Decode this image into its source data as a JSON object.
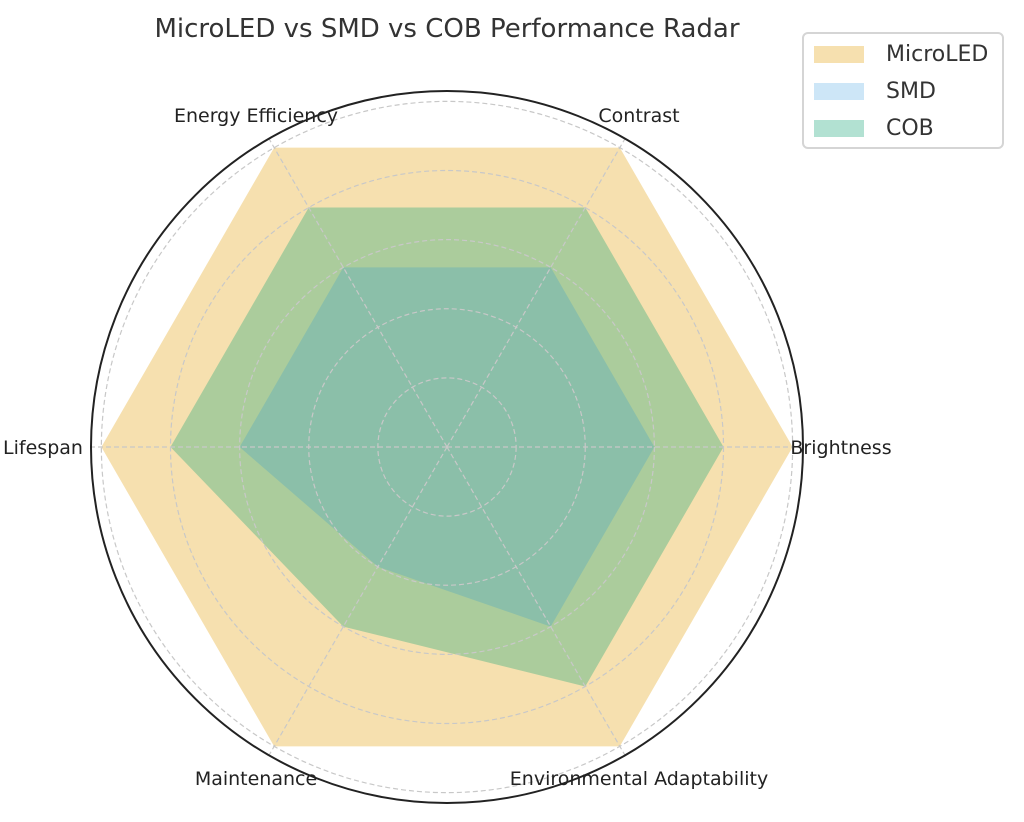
{
  "chart_data": {
    "type": "radar",
    "title": "MicroLED vs SMD vs COB Performance Radar",
    "categories": [
      "Brightness",
      "Contrast",
      "Energy Efficiency",
      "Lifespan",
      "Maintenance",
      "Environmental Adaptability"
    ],
    "series": [
      {
        "name": "MicroLED",
        "values": [
          5,
          5,
          5,
          5,
          5,
          5
        ],
        "color": "#f6e0af"
      },
      {
        "name": "SMD",
        "values": [
          3,
          3,
          3,
          3,
          2,
          3
        ],
        "color": "#cde6f7"
      },
      {
        "name": "COB",
        "values": [
          4,
          4,
          4,
          4,
          3,
          4
        ],
        "color": "#b2e1d2"
      }
    ],
    "rlim": [
      0,
      5.15
    ],
    "grid": true,
    "legend_position": "top-right"
  }
}
